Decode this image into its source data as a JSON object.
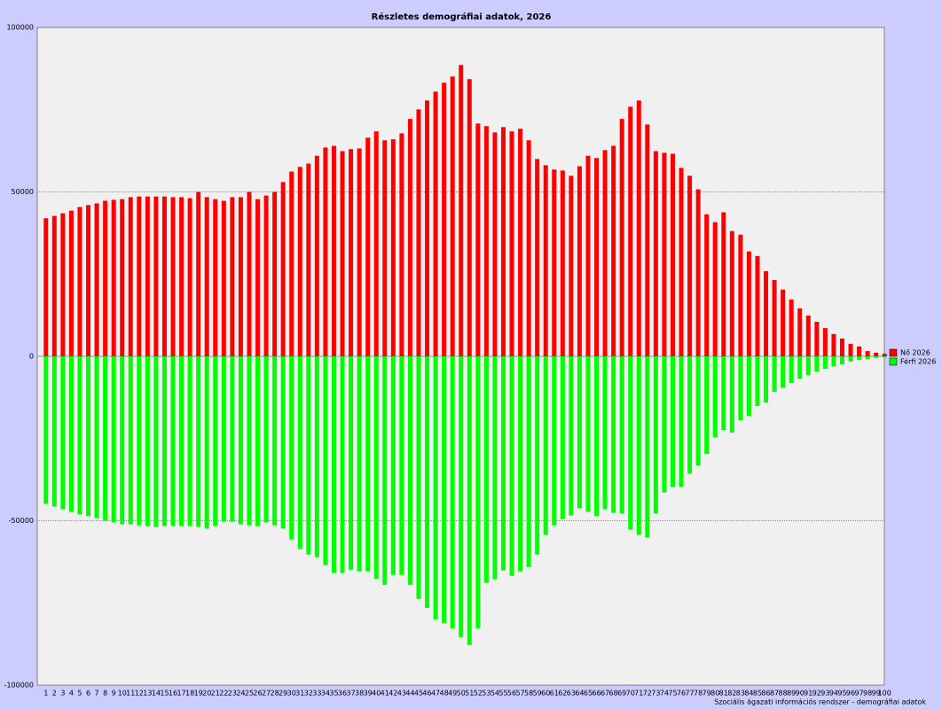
{
  "chart_data": {
    "type": "bar",
    "title": "Részletes demográfiai adatok, 2026",
    "footer": "Szociális ágazati információs rendszer - demográfiai adatok",
    "categories": [
      1,
      2,
      3,
      4,
      5,
      6,
      7,
      8,
      9,
      10,
      11,
      12,
      13,
      14,
      15,
      16,
      17,
      18,
      19,
      20,
      21,
      22,
      23,
      24,
      25,
      26,
      27,
      28,
      29,
      30,
      31,
      32,
      33,
      34,
      35,
      36,
      37,
      38,
      39,
      40,
      41,
      42,
      43,
      44,
      45,
      46,
      47,
      48,
      49,
      50,
      51,
      52,
      53,
      54,
      55,
      56,
      57,
      58,
      59,
      60,
      61,
      62,
      63,
      64,
      65,
      66,
      67,
      68,
      69,
      70,
      71,
      72,
      73,
      74,
      75,
      76,
      77,
      78,
      79,
      80,
      81,
      82,
      83,
      84,
      85,
      86,
      87,
      88,
      89,
      90,
      91,
      92,
      93,
      94,
      95,
      96,
      97,
      98,
      99,
      100
    ],
    "series": [
      {
        "name": "Nő 2026",
        "color": "#ff0000",
        "values": [
          42000,
          42700,
          43500,
          44300,
          45400,
          46000,
          46500,
          47300,
          47600,
          47800,
          48400,
          48600,
          48600,
          48600,
          48600,
          48400,
          48400,
          48100,
          50000,
          48400,
          47800,
          47300,
          48400,
          48400,
          50000,
          47800,
          48900,
          50000,
          53000,
          56200,
          57600,
          58600,
          61000,
          63500,
          64000,
          62400,
          63000,
          63200,
          66500,
          68400,
          65700,
          66000,
          67800,
          72200,
          75100,
          77800,
          80500,
          83200,
          85100,
          88600,
          84300,
          70800,
          70000,
          68100,
          69700,
          68400,
          69200,
          65700,
          60000,
          58100,
          56800,
          56500,
          54900,
          57800,
          61000,
          60300,
          62700,
          64000,
          72200,
          75900,
          77800,
          70500,
          62400,
          61900,
          61600,
          57300,
          54900,
          50800,
          43200,
          40800,
          43800,
          38100,
          37000,
          31900,
          30500,
          25900,
          23200,
          20300,
          17300,
          14600,
          12400,
          10500,
          8600,
          6800,
          5400,
          3800,
          3000,
          1600,
          1100,
          800
        ]
      },
      {
        "name": "Férfi 2026",
        "color": "#00ff00",
        "values": [
          -44900,
          -45700,
          -46500,
          -47300,
          -48100,
          -48600,
          -49200,
          -50000,
          -50500,
          -51100,
          -51100,
          -51400,
          -51600,
          -51900,
          -51600,
          -51600,
          -51600,
          -51600,
          -51900,
          -52400,
          -51600,
          -50300,
          -50300,
          -51100,
          -51400,
          -51600,
          -50500,
          -51400,
          -52400,
          -55700,
          -58600,
          -60300,
          -61100,
          -63500,
          -65900,
          -65900,
          -64900,
          -65400,
          -65400,
          -67600,
          -69500,
          -66500,
          -66500,
          -69500,
          -73800,
          -76500,
          -80000,
          -81100,
          -82700,
          -85400,
          -87800,
          -82700,
          -68900,
          -67800,
          -65100,
          -66800,
          -65400,
          -64100,
          -60300,
          -54300,
          -51400,
          -49500,
          -48400,
          -46200,
          -47300,
          -48600,
          -46500,
          -47600,
          -47800,
          -52700,
          -54300,
          -55100,
          -47800,
          -41400,
          -39700,
          -39700,
          -35700,
          -33200,
          -29700,
          -24600,
          -22400,
          -23200,
          -19500,
          -18100,
          -15100,
          -14100,
          -10800,
          -9500,
          -8100,
          -6800,
          -5700,
          -4600,
          -3800,
          -3000,
          -2400,
          -1600,
          -1100,
          -800,
          -500,
          -300
        ]
      }
    ],
    "ylim": [
      -100000,
      100000
    ],
    "yticks": [
      -100000,
      -50000,
      0,
      50000,
      100000
    ],
    "grid": true,
    "legend": "right"
  }
}
